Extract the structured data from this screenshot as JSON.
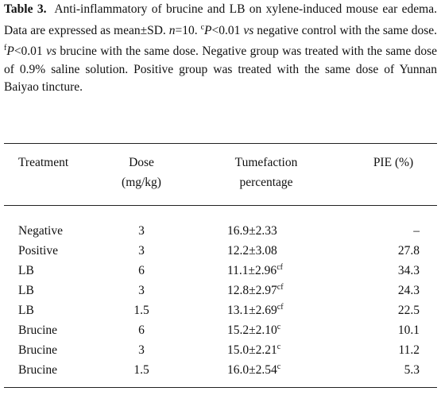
{
  "caption": {
    "label": "Table 3.",
    "parts": [
      "Anti-inflammatory of brucine and LB on xylene-induced mouse ear edema. Data are expressed as mean±SD. ",
      "n",
      "=10. ",
      "c",
      "P",
      "<0.01 ",
      "vs",
      " negative control with the same dose. ",
      "f",
      "P",
      "<0.01 ",
      "vs",
      " brucine with the same dose. Negative group was treated with the same dose of 0.9% saline solution. Positive group was treated with the same dose of Yunnan Baiyao tincture."
    ]
  },
  "table": {
    "headers": [
      [
        "Treatment"
      ],
      [
        "Dose",
        "(mg/kg)"
      ],
      [
        "Tumefaction",
        "percentage"
      ],
      [
        "PIE (%)"
      ]
    ],
    "rows": [
      {
        "treatment": "Negative",
        "dose": 3,
        "tumefaction": "16.9±2.33",
        "pie": "–"
      },
      {
        "treatment": "Positive",
        "dose": 3,
        "tumefaction": "12.2±3.08",
        "pie": 27.8
      },
      {
        "treatment": "LB",
        "dose": 6,
        "tumefaction": "11.1±2.96",
        "sup": "cf",
        "pie": 34.3
      },
      {
        "treatment": "LB",
        "dose": 3,
        "tumefaction": "12.8±2.97",
        "sup": "cf",
        "pie": 24.3
      },
      {
        "treatment": "LB",
        "dose": 1.5,
        "tumefaction": "13.1±2.69",
        "sup": "cf",
        "pie": 22.5
      },
      {
        "treatment": "Brucine",
        "dose": 6,
        "tumefaction": "15.2±2.10",
        "sup": "c",
        "pie": 10.1
      },
      {
        "treatment": "Brucine",
        "dose": 3,
        "tumefaction": "15.0±2.21",
        "sup": "c",
        "pie": 11.2
      },
      {
        "treatment": "Brucine",
        "dose": 1.5,
        "tumefaction": "16.0±2.54",
        "sup": "c",
        "pie": 5.3
      }
    ]
  }
}
